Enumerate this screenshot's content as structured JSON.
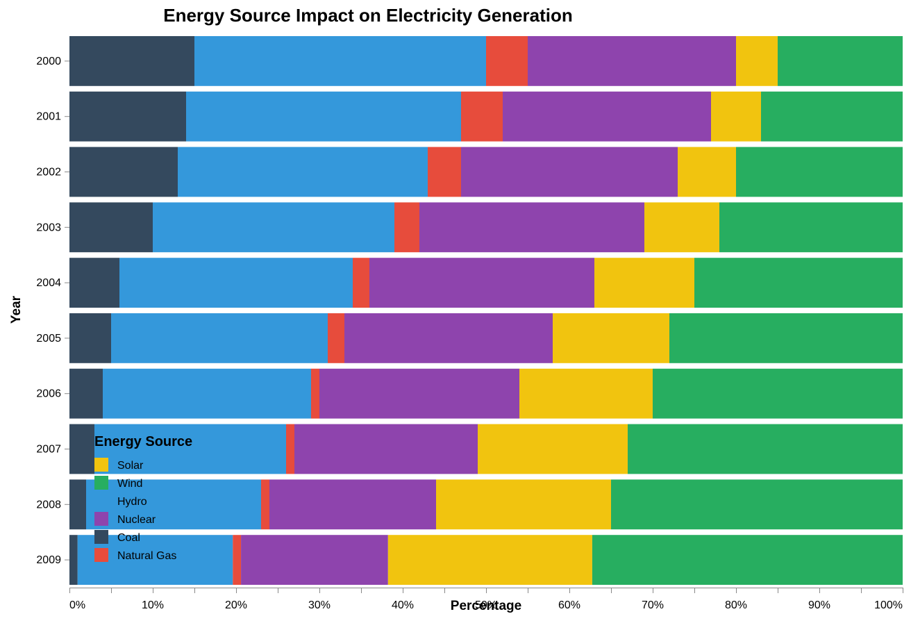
{
  "chart_data": {
    "type": "bar",
    "orientation": "horizontal-stacked-normalized",
    "title": "Energy Source Impact on Electricity Generation",
    "xlabel": "Percentage",
    "ylabel": "Year",
    "xlim": [
      0,
      100
    ],
    "x_ticks": [
      "0%",
      "10%",
      "20%",
      "30%",
      "40%",
      "50%",
      "60%",
      "70%",
      "80%",
      "90%",
      "100%"
    ],
    "categories": [
      "2000",
      "2001",
      "2002",
      "2003",
      "2004",
      "2005",
      "2006",
      "2007",
      "2008",
      "2009"
    ],
    "series": [
      {
        "name": "Coal",
        "color": "#34495e",
        "values": [
          15,
          14,
          13,
          10,
          6,
          5,
          4,
          3,
          2,
          1
        ]
      },
      {
        "name": "Hydro",
        "color": "#3498db",
        "values": [
          35,
          33,
          30,
          29,
          28,
          26,
          25,
          23,
          21,
          19
        ]
      },
      {
        "name": "Natural Gas",
        "color": "#e74c3c",
        "values": [
          5,
          5,
          4,
          3,
          2,
          2,
          1,
          1,
          1,
          1
        ]
      },
      {
        "name": "Nuclear",
        "color": "#8e44ad",
        "values": [
          25,
          25,
          26,
          27,
          27,
          25,
          24,
          22,
          20,
          18
        ]
      },
      {
        "name": "Solar",
        "color": "#f1c40f",
        "values": [
          5,
          6,
          7,
          9,
          12,
          14,
          16,
          18,
          21,
          25
        ]
      },
      {
        "name": "Wind",
        "color": "#27ae60",
        "values": [
          15,
          17,
          20,
          22,
          25,
          28,
          30,
          33,
          35,
          38
        ]
      }
    ],
    "legend": {
      "title": "Energy Source",
      "placement": "bottom-left",
      "order": [
        "Solar",
        "Wind",
        "Hydro",
        "Nuclear",
        "Coal",
        "Natural Gas"
      ]
    }
  }
}
